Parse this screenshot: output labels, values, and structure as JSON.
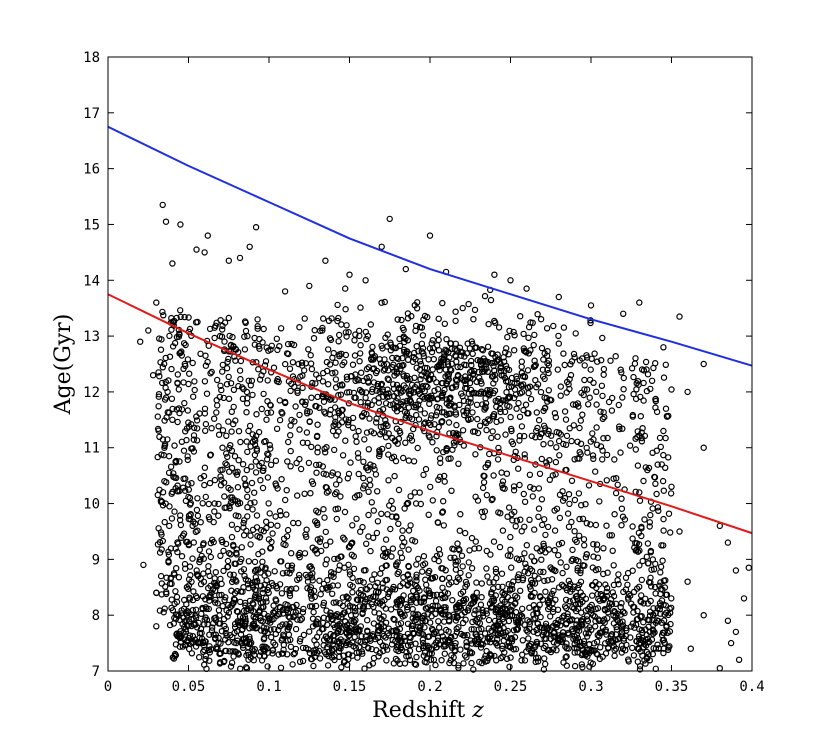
{
  "chart_data": {
    "type": "scatter",
    "title": "",
    "xlabel": "Redshift",
    "xlabel_italic": "z",
    "ylabel": "Age(Gyr)",
    "xlim": [
      0,
      0.4
    ],
    "ylim": [
      7,
      18
    ],
    "x_ticks": [
      "0",
      "0.05",
      "0.1",
      "0.15",
      "0.2",
      "0.25",
      "0.3",
      "0.35",
      "0.4"
    ],
    "y_ticks": [
      "7",
      "8",
      "9",
      "10",
      "11",
      "12",
      "13",
      "14",
      "15",
      "16",
      "17",
      "18"
    ],
    "grid": false,
    "legend": "none",
    "series": [
      {
        "type": "line",
        "color": "#1f2fe0",
        "x": [
          0,
          0.05,
          0.1,
          0.15,
          0.2,
          0.25,
          0.3,
          0.35,
          0.4
        ],
        "y": [
          16.75,
          16.05,
          15.4,
          14.75,
          14.2,
          13.75,
          13.3,
          12.9,
          12.47
        ]
      },
      {
        "type": "line",
        "color": "#e01b1b",
        "x": [
          0,
          0.05,
          0.1,
          0.15,
          0.2,
          0.25,
          0.3,
          0.35,
          0.4
        ],
        "y": [
          13.75,
          13.05,
          12.4,
          11.8,
          11.3,
          10.85,
          10.4,
          9.95,
          9.47
        ]
      },
      {
        "type": "scatter",
        "marker": "open-circle",
        "color": "#000000",
        "points": [
          [
            0.03,
            13.6
          ],
          [
            0.034,
            15.35
          ],
          [
            0.036,
            15.05
          ],
          [
            0.04,
            14.3
          ],
          [
            0.045,
            15.0
          ],
          [
            0.055,
            14.55
          ],
          [
            0.06,
            14.5
          ],
          [
            0.062,
            14.8
          ],
          [
            0.075,
            14.35
          ],
          [
            0.082,
            14.4
          ],
          [
            0.088,
            14.6
          ],
          [
            0.092,
            14.95
          ],
          [
            0.11,
            13.8
          ],
          [
            0.125,
            13.9
          ],
          [
            0.135,
            14.35
          ],
          [
            0.15,
            14.1
          ],
          [
            0.16,
            14.0
          ],
          [
            0.17,
            14.6
          ],
          [
            0.175,
            15.1
          ],
          [
            0.185,
            14.2
          ],
          [
            0.2,
            14.8
          ],
          [
            0.21,
            14.15
          ],
          [
            0.24,
            14.1
          ],
          [
            0.25,
            14.0
          ],
          [
            0.26,
            13.85
          ],
          [
            0.28,
            13.7
          ],
          [
            0.3,
            13.55
          ],
          [
            0.32,
            13.4
          ],
          [
            0.33,
            13.6
          ],
          [
            0.355,
            13.35
          ],
          [
            0.37,
            12.5
          ],
          [
            0.37,
            11.0
          ],
          [
            0.335,
            10.6
          ],
          [
            0.33,
            10.2
          ],
          [
            0.38,
            9.6
          ],
          [
            0.385,
            9.3
          ],
          [
            0.39,
            8.8
          ],
          [
            0.395,
            8.3
          ],
          [
            0.385,
            7.9
          ],
          [
            0.39,
            7.7
          ],
          [
            0.398,
            8.85
          ],
          [
            0.4,
            7.6
          ],
          [
            0.02,
            12.9
          ],
          [
            0.025,
            13.1
          ],
          [
            0.028,
            12.3
          ],
          [
            0.022,
            8.9
          ],
          [
            0.03,
            8.4
          ],
          [
            0.03,
            7.8
          ],
          [
            0.035,
            11.0
          ],
          [
            0.035,
            10.4
          ],
          [
            0.038,
            9.6
          ],
          [
            0.033,
            8.7
          ],
          [
            0.04,
            11.5
          ],
          [
            0.045,
            12.7
          ],
          [
            0.037,
            12.0
          ],
          [
            0.392,
            7.2
          ],
          [
            0.38,
            7.05
          ],
          [
            0.387,
            7.5
          ],
          [
            0.345,
            12.8
          ],
          [
            0.36,
            12.0
          ],
          [
            0.345,
            11.3
          ],
          [
            0.35,
            10.3
          ],
          [
            0.355,
            9.5
          ],
          [
            0.36,
            8.6
          ],
          [
            0.37,
            8.0
          ],
          [
            0.362,
            7.4
          ]
        ]
      }
    ]
  }
}
